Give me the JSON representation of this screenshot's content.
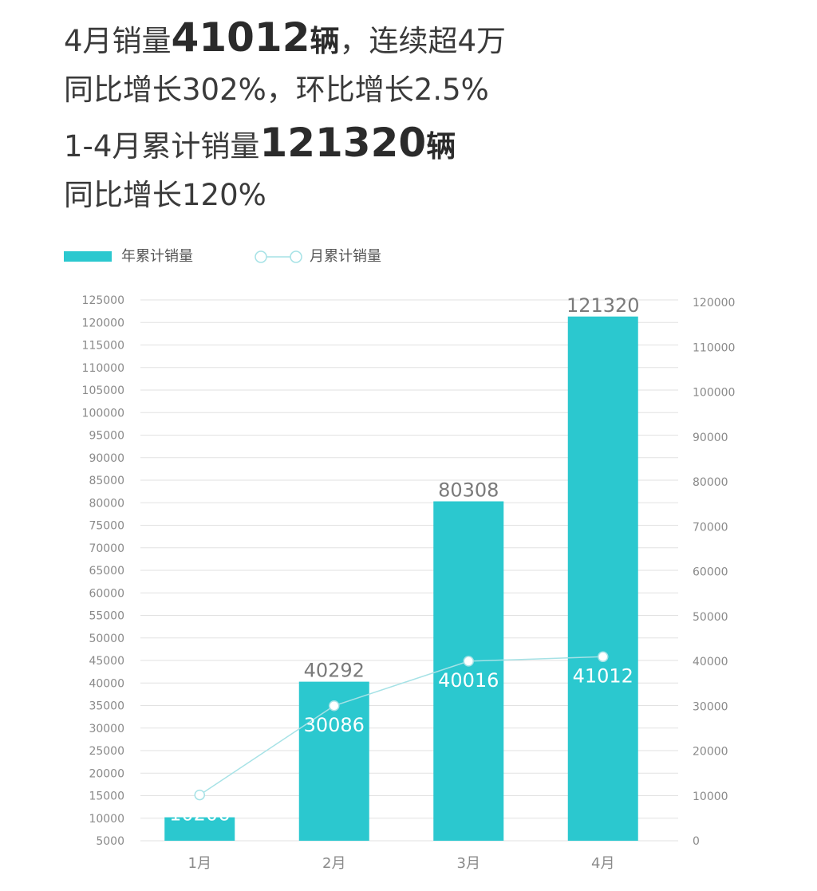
{
  "headline": {
    "line1": {
      "prefix": "4月销量",
      "big": "41012",
      "unit": "辆",
      "suffix": "，连续超4万"
    },
    "line2": "同比增长302%，环比增长2.5%",
    "line3": {
      "prefix": "1-4月累计销量",
      "big": "121320",
      "unit": "辆"
    },
    "line4": "同比增长120%"
  },
  "legend": {
    "bar_label": "年累计销量",
    "line_label": "月累计销量"
  },
  "colors": {
    "bar": "#2bc8cf",
    "line": "#a6e2e6",
    "grid": "#e2e2e2",
    "axis_text": "#8a8a8a",
    "bar_label": "#7a7a7a",
    "point_label": "#ffffff"
  },
  "chart_data": {
    "type": "bar",
    "categories": [
      "1月",
      "2月",
      "3月",
      "4月"
    ],
    "series": [
      {
        "name": "年累计销量",
        "type": "bar",
        "axis": "left",
        "values": [
          10206,
          40292,
          80308,
          121320
        ]
      },
      {
        "name": "月累计销量",
        "type": "line",
        "axis": "right",
        "values": [
          10206,
          30086,
          40016,
          41012
        ]
      }
    ],
    "left_axis": {
      "ylim": [
        5000,
        125000
      ],
      "ticks": [
        5000,
        10000,
        15000,
        20000,
        25000,
        30000,
        35000,
        40000,
        45000,
        50000,
        55000,
        60000,
        65000,
        70000,
        75000,
        80000,
        85000,
        90000,
        95000,
        100000,
        105000,
        110000,
        115000,
        120000,
        125000
      ]
    },
    "right_axis": {
      "ylim": [
        0,
        120000
      ],
      "ticks": [
        0,
        10000,
        20000,
        30000,
        40000,
        50000,
        60000,
        70000,
        80000,
        90000,
        100000,
        110000,
        120000
      ]
    },
    "grid": true,
    "legend_position": "top-left"
  }
}
